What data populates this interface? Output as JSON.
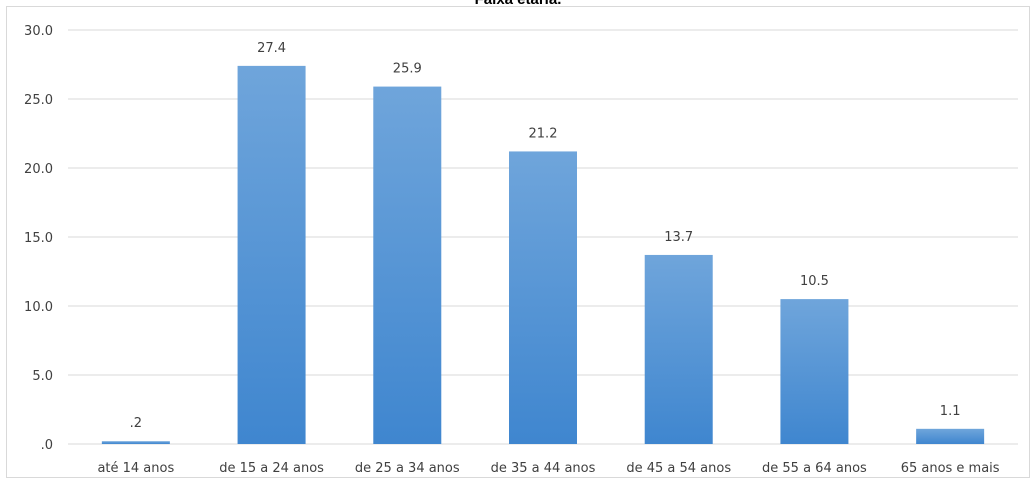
{
  "colors": {
    "bar_top": "#6fa5db",
    "bar_bottom": "#3f86cf",
    "grid": "#d9d9d9",
    "text": "#404040"
  },
  "chart_data": {
    "type": "bar",
    "title": "Faixa etária.",
    "categories": [
      "até 14 anos",
      "de 15 a 24 anos",
      "de 25 a 34 anos",
      "de 35 a 44 anos",
      "de 45 a 54 anos",
      "de 55 a 64 anos",
      "65 anos e mais"
    ],
    "values": [
      0.2,
      27.4,
      25.9,
      21.2,
      13.7,
      10.5,
      1.1
    ],
    "data_labels": [
      ".2",
      "27.4",
      "25.9",
      "21.2",
      "13.7",
      "10.5",
      "1.1"
    ],
    "yticks": [
      ".0",
      "5.0",
      "10.0",
      "15.0",
      "20.0",
      "25.0",
      "30.0"
    ],
    "ylim": [
      0,
      30
    ],
    "grid": true,
    "legend": "none",
    "xlabel": "",
    "ylabel": ""
  }
}
